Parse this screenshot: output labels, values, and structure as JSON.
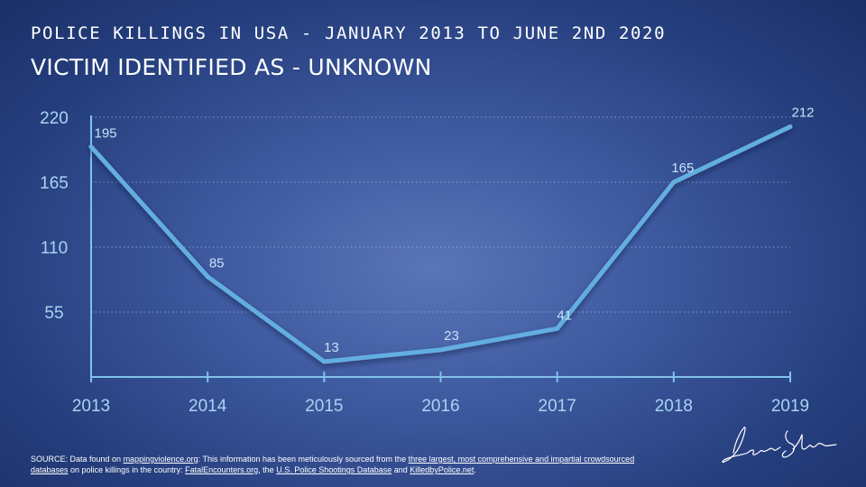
{
  "header": {
    "line1": "POLICE KILLINGS IN USA - JANUARY 2013 TO JUNE 2ND 2020",
    "line2": "VICTIM IDENTIFIED AS - UNKNOWN"
  },
  "colors": {
    "line": "#64aee0",
    "axis": "#7fc2ea",
    "tick_label": "#a9d3f2",
    "data_label": "#c7e2f6",
    "grid": "#8fb2e0"
  },
  "chart_data": {
    "type": "line",
    "x": [
      "2013",
      "2014",
      "2015",
      "2016",
      "2017",
      "2018",
      "2019"
    ],
    "values": [
      195,
      85,
      13,
      23,
      41,
      165,
      212
    ],
    "yticks": [
      "55",
      "110",
      "165",
      "220"
    ],
    "ylim": [
      0,
      220
    ],
    "grid": "horizontal dotted"
  },
  "footer": {
    "source_prefix": "SOURCE: Data found on ",
    "link1": "mappingviolence.org",
    "text1": ": This information has been meticulously sourced from the ",
    "link2": "three largest, most comprehensive and impartial crowdsourced databases",
    "text2": " on police killings in the country: ",
    "link3": "FatalEncounters.org",
    "text3": ", the ",
    "link4": "U.S. Police Shootings Database",
    "text4": " and ",
    "link5": "KilledbyPolice.net",
    "text5": "."
  }
}
